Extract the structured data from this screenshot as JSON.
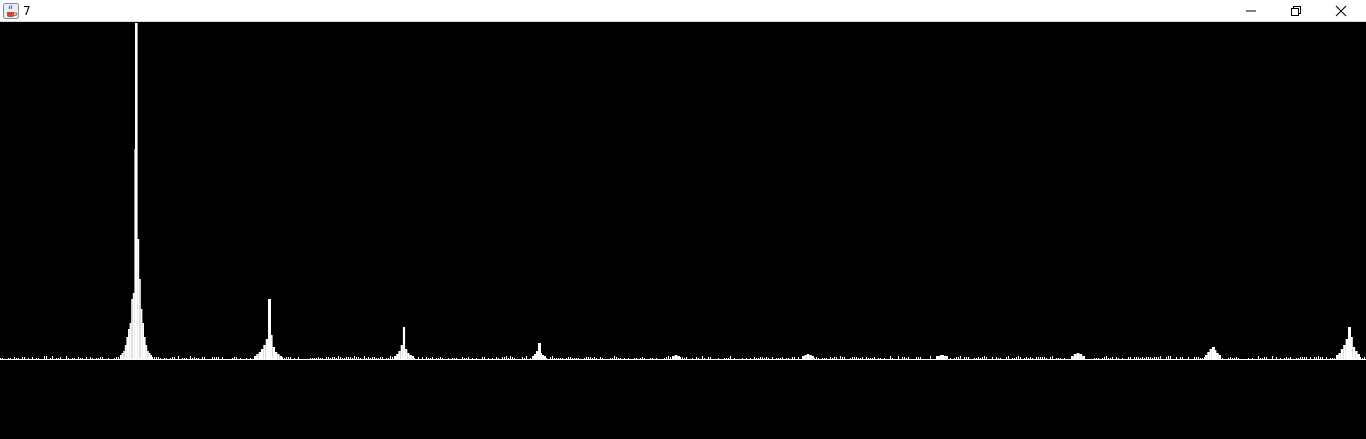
{
  "window": {
    "title": "7",
    "app_icon": "java-cup-icon",
    "controls": [
      "minimize-icon",
      "restore-icon",
      "close-icon"
    ]
  },
  "colors": {
    "background": "#000000",
    "plot": "#ffffff",
    "titlebar": "#ffffff"
  },
  "chart_data": {
    "type": "bar",
    "note_axes": "none",
    "title": "",
    "xlabel": "",
    "ylabel": "",
    "grid": false,
    "x_range": [
      0,
      1366
    ],
    "y_range": [
      0,
      336
    ],
    "baseline": 0,
    "peaks": [
      {
        "x": 136,
        "y": 336
      },
      {
        "x": 270,
        "y": 60
      },
      {
        "x": 404,
        "y": 32
      },
      {
        "x": 540,
        "y": 16
      },
      {
        "x": 1214,
        "y": 12
      },
      {
        "x": 1350,
        "y": 32
      }
    ],
    "clusters": [
      {
        "center": 136,
        "width": 32,
        "heights": [
          4,
          6,
          8,
          14,
          22,
          30,
          36,
          60,
          66,
          210,
          336,
          120,
          80,
          50,
          36,
          22,
          14,
          8,
          6,
          4
        ]
      },
      {
        "center": 268,
        "width": 28,
        "heights": [
          3,
          5,
          7,
          10,
          14,
          20,
          60,
          24,
          12,
          7,
          5,
          3
        ]
      },
      {
        "center": 404,
        "width": 20,
        "heights": [
          3,
          5,
          8,
          14,
          32,
          10,
          6,
          4,
          3
        ]
      },
      {
        "center": 539,
        "width": 14,
        "heights": [
          3,
          5,
          8,
          16,
          6,
          4,
          3
        ]
      },
      {
        "center": 676,
        "width": 8,
        "heights": [
          3,
          4,
          3
        ]
      },
      {
        "center": 808,
        "width": 12,
        "heights": [
          3,
          4,
          5,
          4,
          3
        ]
      },
      {
        "center": 942,
        "width": 12,
        "heights": [
          3,
          4,
          3
        ]
      },
      {
        "center": 1078,
        "width": 14,
        "heights": [
          3,
          5,
          6,
          5,
          3
        ]
      },
      {
        "center": 1213,
        "width": 16,
        "heights": [
          4,
          7,
          10,
          12,
          9,
          6,
          4
        ]
      },
      {
        "center": 1348,
        "width": 24,
        "heights": [
          4,
          6,
          10,
          14,
          20,
          32,
          22,
          12,
          8,
          5
        ]
      }
    ]
  }
}
